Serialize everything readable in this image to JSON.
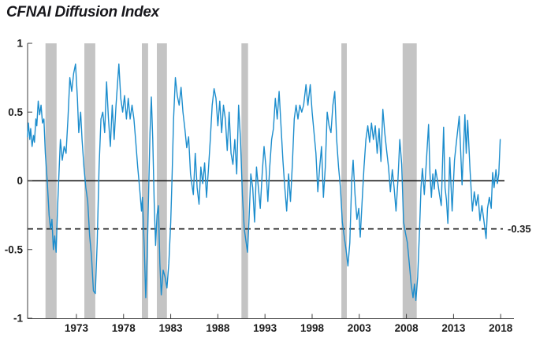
{
  "title": "CFNAI Diffusion Index",
  "chart_data": {
    "type": "line",
    "title": "CFNAI Diffusion Index",
    "grid": false,
    "legend": null,
    "xlim": [
      1967.82,
      2019.07
    ],
    "ylim": [
      -1,
      1
    ],
    "x_ticks": [
      1973,
      1978,
      1983,
      1988,
      1993,
      1998,
      2003,
      2008,
      2013,
      2018
    ],
    "x_tick_labels": [
      "1973",
      "1978",
      "1983",
      "1988",
      "1993",
      "1998",
      "2003",
      "2008",
      "2013",
      "2018"
    ],
    "y_ticks": [
      1,
      0.5,
      0,
      -0.5,
      -1
    ],
    "y_tick_labels": [
      "1",
      "0.5",
      "0",
      "-0.5",
      "-1"
    ],
    "zero_line_value": 0,
    "reference_line": {
      "value": -0.35,
      "label": "-0.35",
      "style": "dashed"
    },
    "recession_bands": [
      [
        1969.72,
        1970.9
      ],
      [
        1973.84,
        1975.0
      ],
      [
        1979.94,
        1980.6
      ],
      [
        1981.53,
        1982.6
      ],
      [
        1990.5,
        1991.2
      ],
      [
        2001.1,
        2001.68
      ],
      [
        2007.6,
        2009.1
      ]
    ],
    "colors": {
      "line": "#1c8dcd",
      "band": "#c4c4c4",
      "axis": "#3f3f3f",
      "zero_line": "#111111",
      "dashed_line": "#111111",
      "text": "#1c1c1c"
    },
    "series": [
      {
        "name": "CFNAI Diffusion Index",
        "points": [
          [
            1967.8,
            0.32
          ],
          [
            1967.9,
            0.42
          ],
          [
            1968.05,
            0.3
          ],
          [
            1968.15,
            0.38
          ],
          [
            1968.3,
            0.25
          ],
          [
            1968.45,
            0.33
          ],
          [
            1968.55,
            0.28
          ],
          [
            1968.7,
            0.45
          ],
          [
            1968.8,
            0.4
          ],
          [
            1968.95,
            0.58
          ],
          [
            1969.1,
            0.48
          ],
          [
            1969.25,
            0.55
          ],
          [
            1969.4,
            0.42
          ],
          [
            1969.55,
            0.45
          ],
          [
            1969.7,
            0.2
          ],
          [
            1969.9,
            0.0
          ],
          [
            1970.1,
            -0.25
          ],
          [
            1970.25,
            -0.35
          ],
          [
            1970.4,
            -0.28
          ],
          [
            1970.55,
            -0.5
          ],
          [
            1970.7,
            -0.4
          ],
          [
            1970.85,
            -0.52
          ],
          [
            1971.0,
            -0.2
          ],
          [
            1971.15,
            0.05
          ],
          [
            1971.3,
            0.3
          ],
          [
            1971.5,
            0.15
          ],
          [
            1971.7,
            0.25
          ],
          [
            1971.9,
            0.2
          ],
          [
            1972.1,
            0.45
          ],
          [
            1972.3,
            0.75
          ],
          [
            1972.5,
            0.65
          ],
          [
            1972.7,
            0.78
          ],
          [
            1972.9,
            0.85
          ],
          [
            1973.1,
            0.6
          ],
          [
            1973.25,
            0.35
          ],
          [
            1973.45,
            0.5
          ],
          [
            1973.6,
            0.3
          ],
          [
            1973.8,
            0.1
          ],
          [
            1974.0,
            -0.05
          ],
          [
            1974.2,
            -0.15
          ],
          [
            1974.4,
            -0.4
          ],
          [
            1974.6,
            -0.55
          ],
          [
            1974.8,
            -0.8
          ],
          [
            1975.0,
            -0.82
          ],
          [
            1975.2,
            -0.45
          ],
          [
            1975.4,
            0.1
          ],
          [
            1975.6,
            0.45
          ],
          [
            1975.8,
            0.5
          ],
          [
            1976.0,
            0.35
          ],
          [
            1976.2,
            0.72
          ],
          [
            1976.4,
            0.45
          ],
          [
            1976.6,
            0.25
          ],
          [
            1976.8,
            0.55
          ],
          [
            1977.0,
            0.3
          ],
          [
            1977.2,
            0.55
          ],
          [
            1977.5,
            0.85
          ],
          [
            1977.7,
            0.6
          ],
          [
            1977.9,
            0.5
          ],
          [
            1978.1,
            0.62
          ],
          [
            1978.3,
            0.45
          ],
          [
            1978.5,
            0.6
          ],
          [
            1978.7,
            0.45
          ],
          [
            1978.9,
            0.55
          ],
          [
            1979.1,
            0.45
          ],
          [
            1979.3,
            0.28
          ],
          [
            1979.5,
            0.1
          ],
          [
            1979.7,
            -0.05
          ],
          [
            1979.9,
            -0.22
          ],
          [
            1980.0,
            -0.12
          ],
          [
            1980.2,
            -0.5
          ],
          [
            1980.35,
            -0.85
          ],
          [
            1980.5,
            -0.55
          ],
          [
            1980.65,
            -0.1
          ],
          [
            1980.8,
            0.35
          ],
          [
            1980.95,
            0.61
          ],
          [
            1981.1,
            0.3
          ],
          [
            1981.25,
            -0.15
          ],
          [
            1981.4,
            -0.47
          ],
          [
            1981.55,
            -0.25
          ],
          [
            1981.7,
            -0.18
          ],
          [
            1981.85,
            -0.6
          ],
          [
            1982.0,
            -0.83
          ],
          [
            1982.2,
            -0.65
          ],
          [
            1982.4,
            -0.7
          ],
          [
            1982.6,
            -0.78
          ],
          [
            1982.8,
            -0.6
          ],
          [
            1983.0,
            -0.3
          ],
          [
            1983.15,
            0.05
          ],
          [
            1983.3,
            0.45
          ],
          [
            1983.5,
            0.75
          ],
          [
            1983.7,
            0.62
          ],
          [
            1983.9,
            0.55
          ],
          [
            1984.1,
            0.68
          ],
          [
            1984.3,
            0.5
          ],
          [
            1984.5,
            0.38
          ],
          [
            1984.7,
            0.24
          ],
          [
            1984.9,
            0.32
          ],
          [
            1985.1,
            0.05
          ],
          [
            1985.25,
            -0.03
          ],
          [
            1985.4,
            -0.1
          ],
          [
            1985.6,
            0.2
          ],
          [
            1985.8,
            -0.05
          ],
          [
            1986.0,
            -0.17
          ],
          [
            1986.2,
            0.1
          ],
          [
            1986.4,
            -0.02
          ],
          [
            1986.6,
            0.13
          ],
          [
            1986.8,
            -0.12
          ],
          [
            1987.0,
            0.08
          ],
          [
            1987.2,
            0.3
          ],
          [
            1987.4,
            0.55
          ],
          [
            1987.6,
            0.67
          ],
          [
            1987.8,
            0.6
          ],
          [
            1988.0,
            0.4
          ],
          [
            1988.2,
            0.58
          ],
          [
            1988.4,
            0.35
          ],
          [
            1988.6,
            0.55
          ],
          [
            1988.8,
            0.45
          ],
          [
            1989.0,
            0.22
          ],
          [
            1989.2,
            0.5
          ],
          [
            1989.4,
            0.2
          ],
          [
            1989.6,
            0.12
          ],
          [
            1989.8,
            0.3
          ],
          [
            1990.0,
            0.05
          ],
          [
            1990.2,
            0.55
          ],
          [
            1990.4,
            0.3
          ],
          [
            1990.6,
            -0.1
          ],
          [
            1990.8,
            -0.35
          ],
          [
            1991.0,
            -0.45
          ],
          [
            1991.15,
            -0.52
          ],
          [
            1991.3,
            -0.3
          ],
          [
            1991.5,
            0.05
          ],
          [
            1991.7,
            -0.05
          ],
          [
            1991.9,
            -0.3
          ],
          [
            1992.1,
            0.1
          ],
          [
            1992.3,
            -0.05
          ],
          [
            1992.5,
            -0.2
          ],
          [
            1992.7,
            0.05
          ],
          [
            1992.9,
            0.25
          ],
          [
            1993.1,
            0.1
          ],
          [
            1993.3,
            -0.15
          ],
          [
            1993.5,
            0.1
          ],
          [
            1993.7,
            0.3
          ],
          [
            1993.9,
            0.38
          ],
          [
            1994.1,
            0.6
          ],
          [
            1994.3,
            0.45
          ],
          [
            1994.5,
            0.65
          ],
          [
            1994.7,
            0.4
          ],
          [
            1994.9,
            0.15
          ],
          [
            1995.1,
            -0.05
          ],
          [
            1995.3,
            -0.22
          ],
          [
            1995.5,
            0.05
          ],
          [
            1995.7,
            -0.15
          ],
          [
            1995.9,
            0.12
          ],
          [
            1996.1,
            0.45
          ],
          [
            1996.3,
            0.55
          ],
          [
            1996.5,
            0.45
          ],
          [
            1996.7,
            0.55
          ],
          [
            1996.9,
            0.5
          ],
          [
            1997.1,
            0.55
          ],
          [
            1997.35,
            0.7
          ],
          [
            1997.55,
            0.55
          ],
          [
            1997.8,
            0.7
          ],
          [
            1998.0,
            0.5
          ],
          [
            1998.2,
            0.35
          ],
          [
            1998.4,
            0.2
          ],
          [
            1998.6,
            -0.08
          ],
          [
            1998.8,
            0.1
          ],
          [
            1999.0,
            0.25
          ],
          [
            1999.2,
            -0.12
          ],
          [
            1999.4,
            0.1
          ],
          [
            1999.6,
            0.5
          ],
          [
            1999.8,
            0.4
          ],
          [
            2000.0,
            0.35
          ],
          [
            2000.2,
            0.55
          ],
          [
            2000.4,
            0.65
          ],
          [
            2000.6,
            0.3
          ],
          [
            2000.8,
            0.1
          ],
          [
            2001.0,
            -0.05
          ],
          [
            2001.2,
            -0.3
          ],
          [
            2001.4,
            -0.4
          ],
          [
            2001.6,
            -0.5
          ],
          [
            2001.8,
            -0.62
          ],
          [
            2002.0,
            -0.45
          ],
          [
            2002.2,
            0.0
          ],
          [
            2002.35,
            0.15
          ],
          [
            2002.55,
            -0.1
          ],
          [
            2002.75,
            -0.28
          ],
          [
            2002.95,
            -0.2
          ],
          [
            2003.1,
            -0.41
          ],
          [
            2003.3,
            -0.15
          ],
          [
            2003.5,
            0.1
          ],
          [
            2003.7,
            0.3
          ],
          [
            2003.9,
            0.4
          ],
          [
            2004.1,
            0.28
          ],
          [
            2004.3,
            0.42
          ],
          [
            2004.5,
            0.3
          ],
          [
            2004.7,
            0.4
          ],
          [
            2004.9,
            0.2
          ],
          [
            2005.1,
            0.38
          ],
          [
            2005.3,
            0.14
          ],
          [
            2005.5,
            0.52
          ],
          [
            2005.7,
            0.35
          ],
          [
            2005.9,
            0.22
          ],
          [
            2006.1,
            0.1
          ],
          [
            2006.3,
            -0.08
          ],
          [
            2006.5,
            0.08
          ],
          [
            2006.7,
            -0.05
          ],
          [
            2006.9,
            -0.22
          ],
          [
            2007.1,
            0.0
          ],
          [
            2007.3,
            0.3
          ],
          [
            2007.5,
            0.12
          ],
          [
            2007.7,
            -0.3
          ],
          [
            2007.9,
            -0.38
          ],
          [
            2008.1,
            -0.45
          ],
          [
            2008.3,
            -0.6
          ],
          [
            2008.5,
            -0.75
          ],
          [
            2008.7,
            -0.85
          ],
          [
            2008.85,
            -0.75
          ],
          [
            2009.0,
            -0.87
          ],
          [
            2009.2,
            -0.7
          ],
          [
            2009.4,
            -0.35
          ],
          [
            2009.55,
            -0.05
          ],
          [
            2009.7,
            0.09
          ],
          [
            2009.9,
            -0.1
          ],
          [
            2010.1,
            0.12
          ],
          [
            2010.35,
            0.41
          ],
          [
            2010.5,
            0.05
          ],
          [
            2010.65,
            -0.12
          ],
          [
            2010.8,
            0.05
          ],
          [
            2010.95,
            -0.06
          ],
          [
            2011.1,
            0.08
          ],
          [
            2011.3,
            0.0
          ],
          [
            2011.5,
            -0.1
          ],
          [
            2011.7,
            -0.18
          ],
          [
            2011.95,
            0.39
          ],
          [
            2012.1,
            -0.05
          ],
          [
            2012.25,
            -0.14
          ],
          [
            2012.4,
            -0.31
          ],
          [
            2012.6,
            0.17
          ],
          [
            2012.85,
            -0.22
          ],
          [
            2013.1,
            0.15
          ],
          [
            2013.3,
            0.28
          ],
          [
            2013.6,
            0.47
          ],
          [
            2013.9,
            -0.03
          ],
          [
            2014.2,
            0.48
          ],
          [
            2014.35,
            0.2
          ],
          [
            2014.5,
            0.44
          ],
          [
            2014.75,
            0.08
          ],
          [
            2015.0,
            -0.22
          ],
          [
            2015.2,
            -0.08
          ],
          [
            2015.4,
            -0.18
          ],
          [
            2015.6,
            -0.1
          ],
          [
            2015.8,
            -0.29
          ],
          [
            2016.0,
            -0.18
          ],
          [
            2016.2,
            -0.28
          ],
          [
            2016.45,
            -0.42
          ],
          [
            2016.6,
            -0.2
          ],
          [
            2016.8,
            -0.12
          ],
          [
            2017.0,
            -0.2
          ],
          [
            2017.15,
            0.06
          ],
          [
            2017.3,
            -0.05
          ],
          [
            2017.5,
            0.08
          ],
          [
            2017.65,
            -0.02
          ],
          [
            2017.8,
            0.05
          ],
          [
            2017.95,
            0.3
          ]
        ]
      }
    ]
  }
}
